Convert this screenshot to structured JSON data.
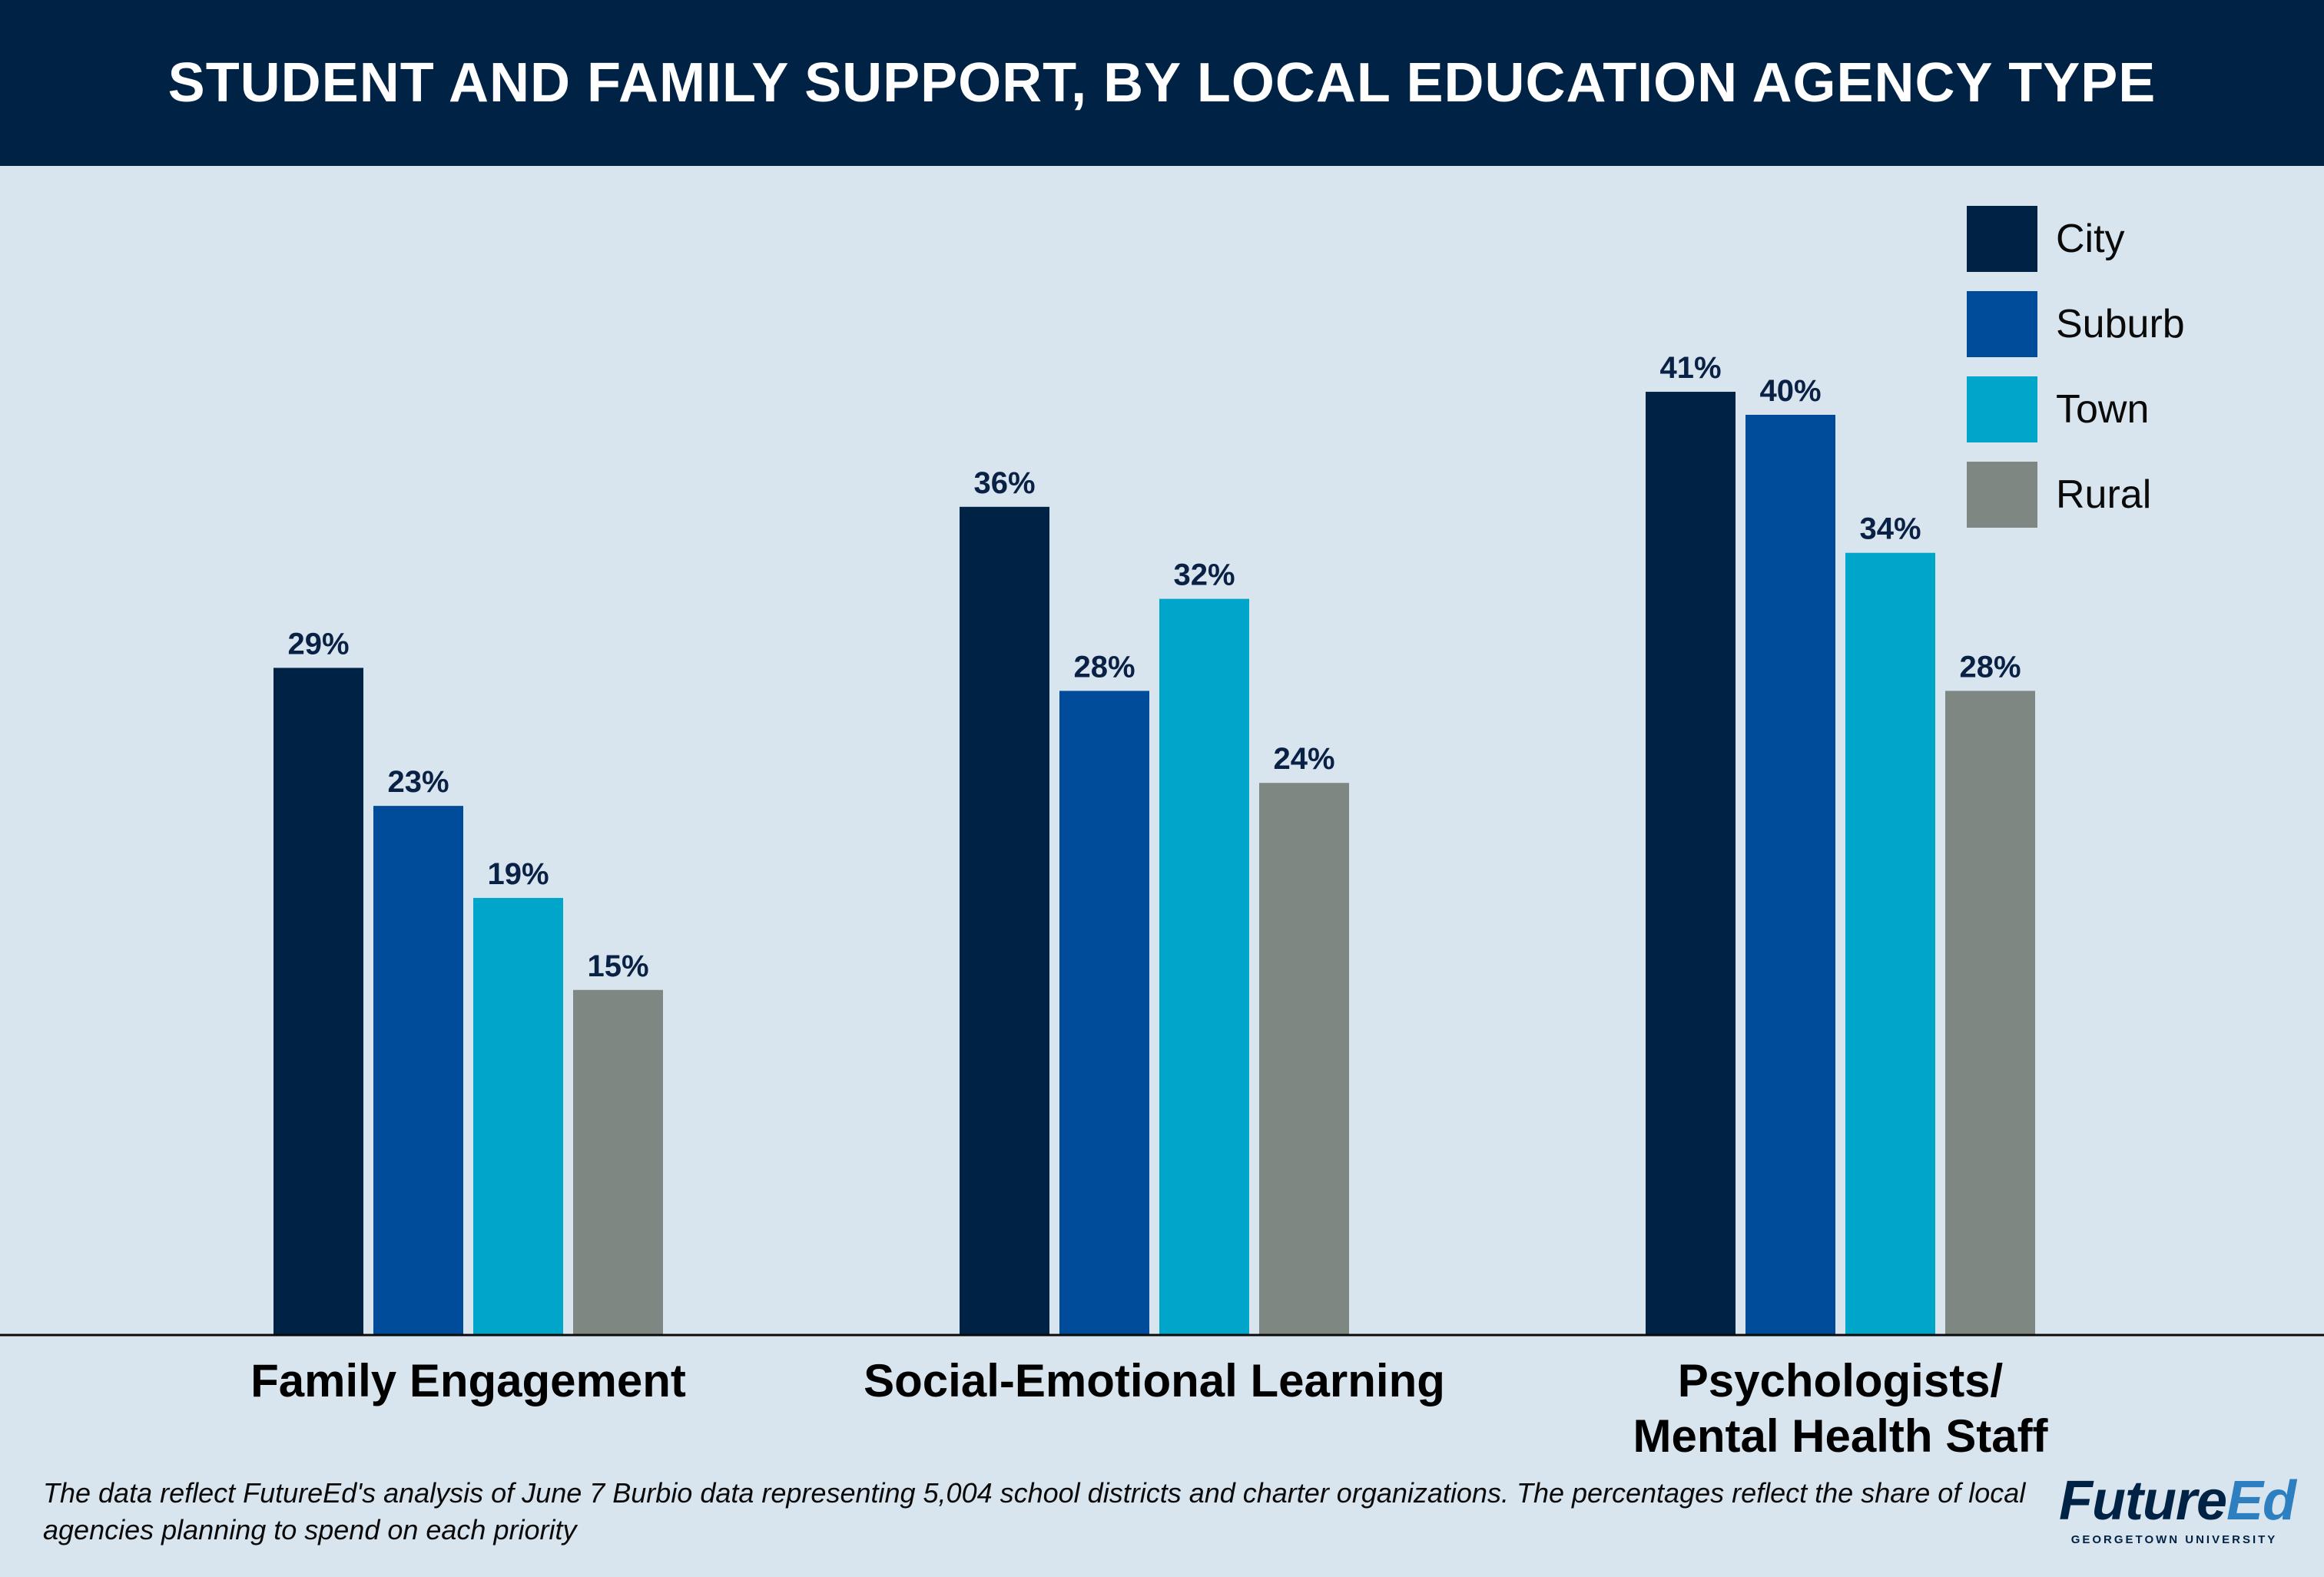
{
  "header": {
    "title": "STUDENT AND FAMILY SUPPORT, BY LOCAL EDUCATION AGENCY TYPE"
  },
  "chart_data": {
    "type": "bar",
    "title": "STUDENT AND FAMILY SUPPORT, BY LOCAL EDUCATION AGENCY TYPE",
    "categories": [
      "Family Engagement",
      "Social-Emotional Learning",
      "Psychologists/\nMental Health Staff"
    ],
    "series": [
      {
        "name": "City",
        "values": [
          29,
          36,
          41
        ],
        "color": "#002244"
      },
      {
        "name": "Suburb",
        "values": [
          23,
          28,
          40
        ],
        "color": "#004c9b"
      },
      {
        "name": "Town",
        "values": [
          19,
          32,
          34
        ],
        "color": "#00a6c9"
      },
      {
        "name": "Rural",
        "values": [
          15,
          24,
          28
        ],
        "color": "#7f8783"
      }
    ],
    "value_suffix": "%",
    "ylim": [
      0,
      50
    ],
    "grid": false,
    "legend_position": "top-right",
    "xlabel": "",
    "ylabel": ""
  },
  "footnote": "The data reflect FutureEd's analysis of June 7 Burbio data representing 5,004 school districts and charter organizations. The percentages reflect the share of local agencies planning to spend on each priority",
  "logo": {
    "part1": "Future",
    "part2": "Ed",
    "subtitle": "GEORGETOWN UNIVERSITY"
  }
}
